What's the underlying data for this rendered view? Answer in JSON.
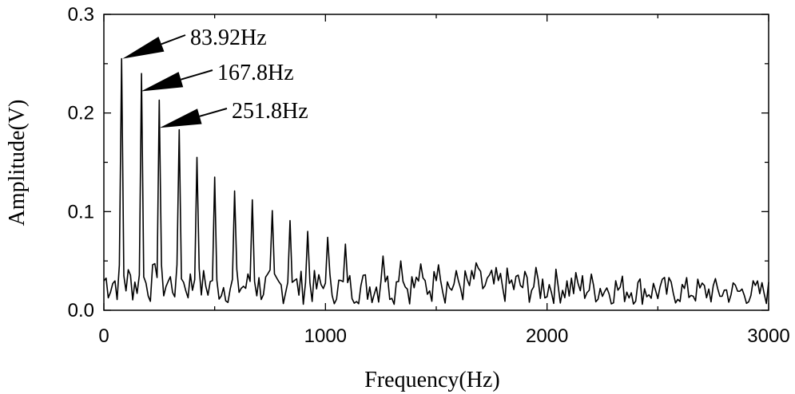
{
  "chart_data": {
    "type": "line",
    "xlabel": "Frequency(Hz)",
    "ylabel": "Amplitude(V)",
    "xlim": [
      0,
      3000
    ],
    "ylim": [
      0,
      0.3
    ],
    "x_ticks": [
      0,
      1000,
      2000,
      3000
    ],
    "x_tick_labels": [
      "0",
      "1000",
      "2000",
      "3000"
    ],
    "y_ticks": [
      0.0,
      0.1,
      0.2,
      0.3
    ],
    "y_tick_labels": [
      "0.0",
      "0.1",
      "0.2",
      "0.3"
    ],
    "grid": false,
    "line_color": "#000000",
    "harmonic_peaks": {
      "x": [
        83.92,
        167.8,
        251.8,
        335.7,
        419.6,
        503.5,
        587.4,
        671.4,
        755.3,
        839.2,
        923.1,
        1007,
        1091,
        1175,
        1259,
        1343,
        1427,
        1511,
        1595,
        1679
      ],
      "y": [
        0.255,
        0.24,
        0.213,
        0.183,
        0.155,
        0.135,
        0.121,
        0.112,
        0.101,
        0.091,
        0.08,
        0.074,
        0.067,
        0.06,
        0.055,
        0.05,
        0.047,
        0.046,
        0.045,
        0.048
      ]
    },
    "noise_floor": {
      "x": [
        0,
        500,
        1000,
        1500,
        2000,
        2500,
        3000
      ],
      "y": [
        0.03,
        0.025,
        0.023,
        0.025,
        0.025,
        0.02,
        0.018
      ]
    },
    "annotations": [
      {
        "text": "83.92Hz",
        "x": 83.92,
        "y": 0.255
      },
      {
        "text": "167.8Hz",
        "x": 167.8,
        "y": 0.222
      },
      {
        "text": "251.8Hz",
        "x": 251.8,
        "y": 0.185
      }
    ]
  }
}
